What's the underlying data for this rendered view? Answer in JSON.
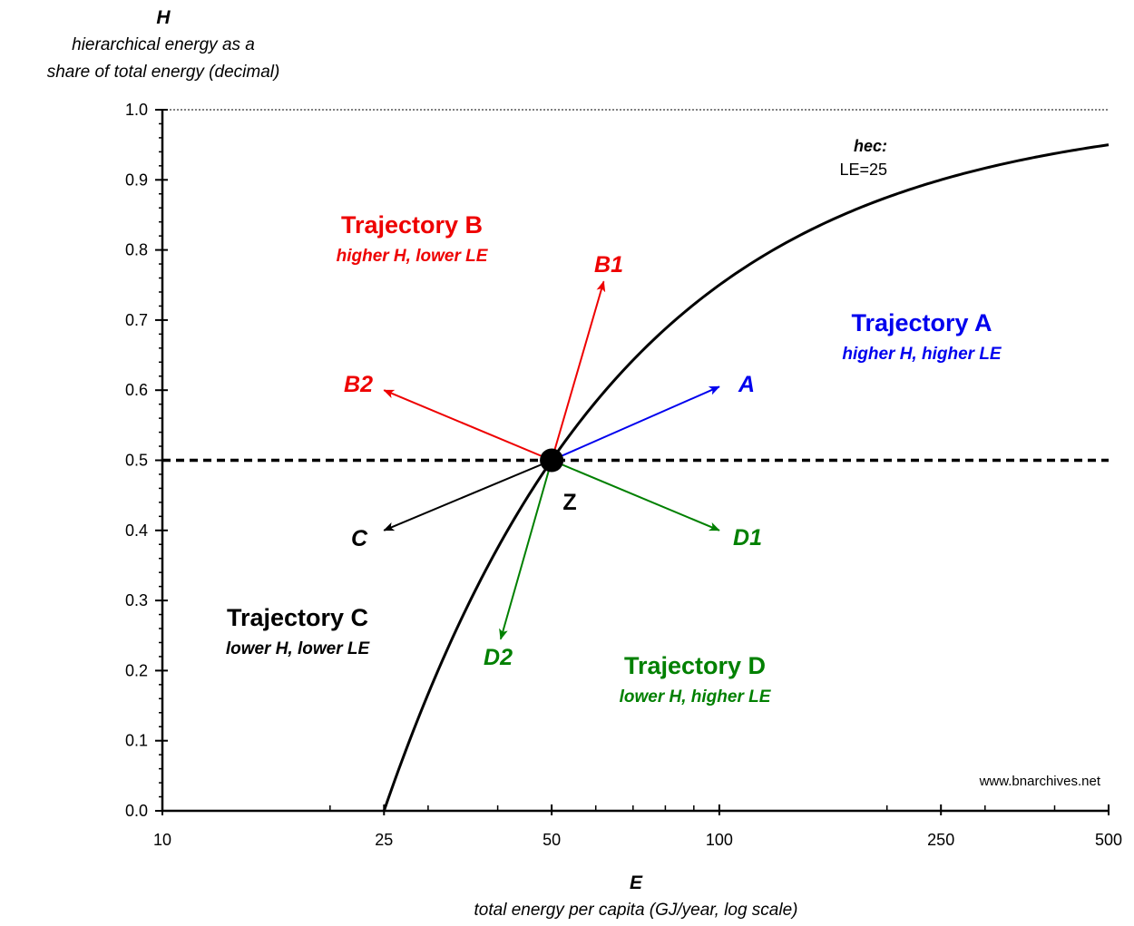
{
  "chart_data": {
    "type": "line",
    "y_title": "H",
    "y_subtitle_line1": "hierarchical energy as a",
    "y_subtitle_line2": "share of total energy (decimal)",
    "x_title": "E",
    "x_subtitle": "total energy per capita (GJ/year, log scale)",
    "x_scale": "log",
    "xlim": [
      10,
      500
    ],
    "ylim": [
      0,
      1.0
    ],
    "x_ticks": [
      10,
      25,
      50,
      100,
      250,
      500
    ],
    "x_tick_labels": [
      "10",
      "25",
      "50",
      "100",
      "250",
      "500"
    ],
    "y_ticks": [
      0,
      0.1,
      0.2,
      0.3,
      0.4,
      0.5,
      0.6,
      0.7,
      0.8,
      0.9,
      1.0
    ],
    "y_tick_labels": [
      "0.0",
      "0.1",
      "0.2",
      "0.3",
      "0.4",
      "0.5",
      "0.6",
      "0.7",
      "0.8",
      "0.9",
      "1.0"
    ],
    "curve": {
      "label": "hec:",
      "sublabel": "LE=25",
      "le": 25,
      "x": [
        25,
        30,
        40,
        50,
        60,
        75,
        100,
        150,
        200,
        250,
        300,
        400,
        500
      ],
      "y": [
        0.0,
        0.167,
        0.375,
        0.5,
        0.583,
        0.667,
        0.75,
        0.833,
        0.875,
        0.9,
        0.917,
        0.938,
        0.95
      ]
    },
    "reference_line": {
      "y": 0.5,
      "style": "dashed"
    },
    "top_line": {
      "y": 1.0,
      "style": "dotted"
    },
    "point": {
      "label": "Z",
      "x": 50,
      "y": 0.5
    },
    "arrows": [
      {
        "label": "A",
        "color": "#0000ee",
        "x": 100,
        "y": 0.605
      },
      {
        "label": "B1",
        "color": "#ee0000",
        "x": 62,
        "y": 0.755
      },
      {
        "label": "B2",
        "color": "#ee0000",
        "x": 25,
        "y": 0.6
      },
      {
        "label": "C",
        "color": "#000000",
        "x": 25,
        "y": 0.4
      },
      {
        "label": "D1",
        "color": "#008000",
        "x": 100,
        "y": 0.4
      },
      {
        "label": "D2",
        "color": "#008000",
        "x": 40.5,
        "y": 0.245
      }
    ],
    "regions": [
      {
        "title": "Trajectory A",
        "subtitle": "higher H, higher LE",
        "color": "#0000ee"
      },
      {
        "title": "Trajectory B",
        "subtitle": "higher H, lower LE",
        "color": "#ee0000"
      },
      {
        "title": "Trajectory C",
        "subtitle": "lower H, lower LE",
        "color": "#000000"
      },
      {
        "title": "Trajectory D",
        "subtitle": "lower H, higher LE",
        "color": "#008000"
      }
    ],
    "source": "www.bnarchives.net"
  }
}
